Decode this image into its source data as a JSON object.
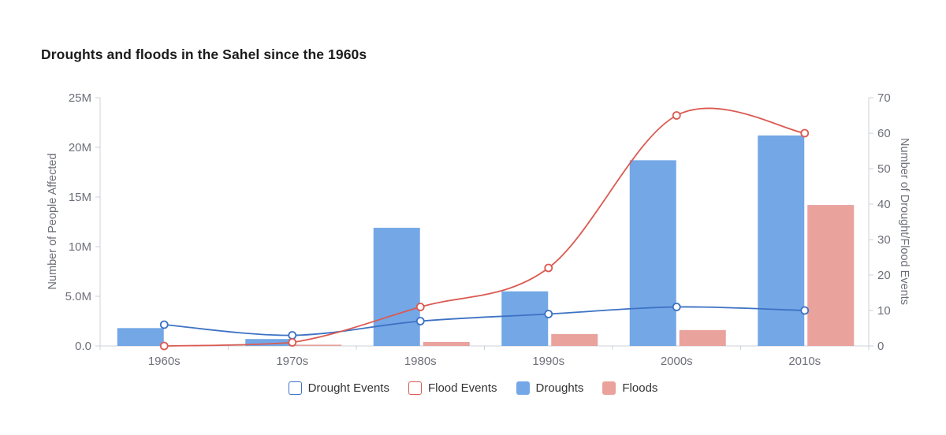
{
  "title": "Droughts and floods in the Sahel since the 1960s",
  "colors": {
    "axis_text": "#6e7079",
    "axis_line": "#ccd0d7",
    "title_text": "#1c1c1c",
    "legend_text": "#333333",
    "plot_background": "#ffffff"
  },
  "chart_data": {
    "type": "bar",
    "subtype": "grouped-bar-with-lines-dual-axis",
    "title": "Droughts and floods in the Sahel since the 1960s",
    "categories": [
      "1960s",
      "1970s",
      "1980s",
      "1990s",
      "2000s",
      "2010s"
    ],
    "series": [
      {
        "name": "Drought Events",
        "type": "line",
        "axis": "right",
        "color": "#3d72c4",
        "marker": "open-circle",
        "values": [
          6,
          3,
          7,
          9,
          11,
          10
        ]
      },
      {
        "name": "Flood Events",
        "type": "line",
        "axis": "right",
        "color": "#db5a52",
        "marker": "open-circle",
        "values": [
          0,
          1,
          11,
          22,
          65,
          60
        ]
      },
      {
        "name": "Droughts",
        "type": "bar",
        "axis": "left",
        "color": "#73a7e6",
        "values_million": [
          1.8,
          0.7,
          11.9,
          5.5,
          18.7,
          21.2
        ]
      },
      {
        "name": "Floods",
        "type": "bar",
        "axis": "left",
        "color": "#e9a29c",
        "values_million": [
          0.02,
          0.13,
          0.4,
          1.2,
          1.6,
          14.2
        ]
      }
    ],
    "left_axis": {
      "label": "Number of People Affected",
      "tick_labels_top_to_bottom": [
        "25M",
        "20M",
        "15M",
        "10M",
        "5.0M",
        "0.0"
      ],
      "min": 0,
      "max": 25000000
    },
    "right_axis": {
      "label": "Number of Drought/Flood Events",
      "tick_labels_top_to_bottom": [
        "70",
        "60",
        "50",
        "40",
        "30",
        "20",
        "10",
        "0"
      ],
      "min": 0,
      "max": 70
    },
    "grid": false,
    "legend_position": "bottom",
    "legend": [
      {
        "label": "Drought Events",
        "swatch": "outline",
        "color": "#3d72c4"
      },
      {
        "label": "Flood Events",
        "swatch": "outline",
        "color": "#db5a52"
      },
      {
        "label": "Droughts",
        "swatch": "solid",
        "color": "#73a7e6"
      },
      {
        "label": "Floods",
        "swatch": "solid",
        "color": "#e9a29c"
      }
    ]
  }
}
